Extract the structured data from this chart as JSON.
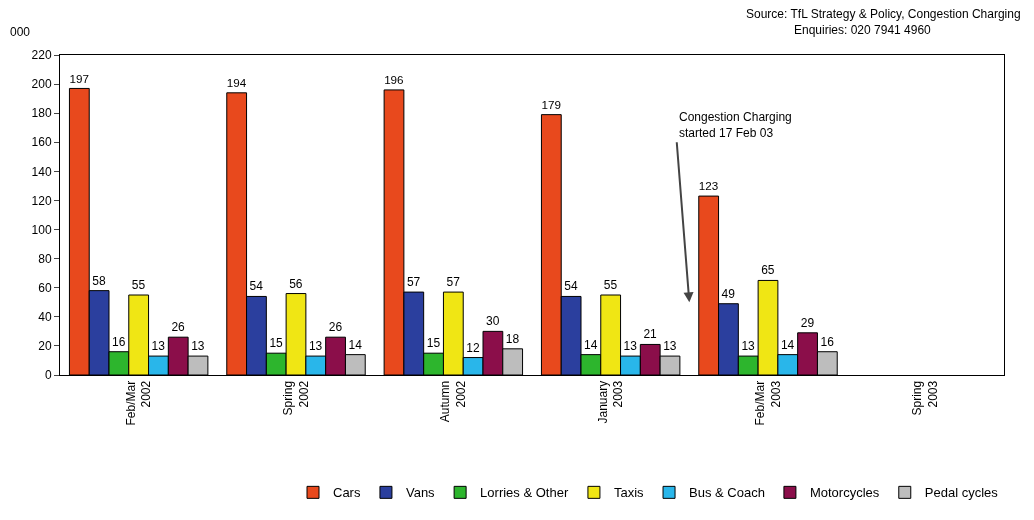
{
  "chart_data": {
    "type": "bar",
    "ylabel": "000",
    "categories": [
      "Feb/Mar 2002",
      "Spring 2002",
      "Autumn 2002",
      "January 2003",
      "Feb/Mar 2003",
      "Spring 2003"
    ],
    "series": [
      {
        "name": "Cars",
        "color": "#e8491d",
        "values": [
          197,
          194,
          196,
          179,
          123,
          null
        ]
      },
      {
        "name": "Vans",
        "color": "#2b3f9e",
        "values": [
          58,
          54,
          57,
          54,
          49,
          null
        ]
      },
      {
        "name": "Lorries & Other",
        "color": "#2db52d",
        "values": [
          16,
          15,
          15,
          14,
          13,
          null
        ]
      },
      {
        "name": "Taxis",
        "color": "#f0e614",
        "values": [
          55,
          56,
          57,
          55,
          65,
          null
        ]
      },
      {
        "name": "Bus & Coach",
        "color": "#29b6ea",
        "values": [
          13,
          13,
          12,
          13,
          14,
          null
        ]
      },
      {
        "name": "Motorcycles",
        "color": "#8b0e4a",
        "values": [
          26,
          26,
          30,
          21,
          29,
          null
        ]
      },
      {
        "name": "Pedal cycles",
        "color": "#bdbdbd",
        "values": [
          13,
          14,
          18,
          13,
          16,
          null
        ]
      }
    ],
    "ylim": [
      0,
      220
    ],
    "yticks": [
      0,
      20,
      40,
      60,
      80,
      100,
      120,
      140,
      160,
      180,
      200,
      220
    ],
    "data_labels": true,
    "legend": "bottom",
    "grid": false,
    "annotations": [
      "Source: TfL Strategy & Policy, Congestion Charging",
      "Enquiries: 020 7941 4960",
      "Congestion Charging started 17 Feb 03"
    ]
  }
}
